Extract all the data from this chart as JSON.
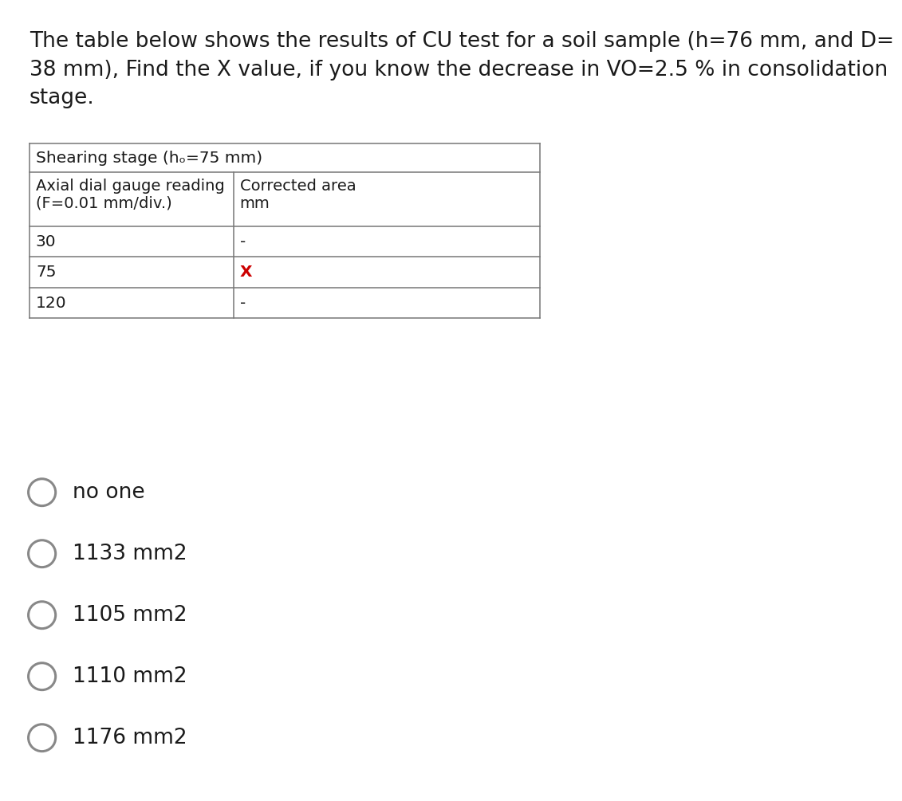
{
  "title_line1": "The table below shows the results of CU test for a soil sample (h=76 mm, and D=",
  "title_line2": "38 mm), Find the X value, if you know the decrease in VO=2.5 % in consolidation",
  "title_line3": "stage.",
  "bg_color": "#ffffff",
  "text_color": "#1a1a1a",
  "table_header_main": "Shearing stage (hₒ=75 mm)",
  "col1_header_line1": "Axial dial gauge reading",
  "col1_header_line2": "(F=0.01 mm/div.)",
  "col2_header_line1": "Corrected area",
  "col2_header_line2": "mm",
  "rows": [
    {
      "col1": "30",
      "col2": "-",
      "col2_color": "#1a1a1a"
    },
    {
      "col1": "75",
      "col2": "X",
      "col2_color": "#cc0000"
    },
    {
      "col1": "120",
      "col2": "-",
      "col2_color": "#1a1a1a"
    }
  ],
  "options": [
    "no one",
    "1133 mm2",
    "1105 mm2",
    "1110 mm2",
    "1176 mm2"
  ],
  "title_fontsize": 19.0,
  "table_fontsize": 14.5,
  "option_fontsize": 19.0,
  "table_line_color": "#777777",
  "option_circle_color": "#888888"
}
